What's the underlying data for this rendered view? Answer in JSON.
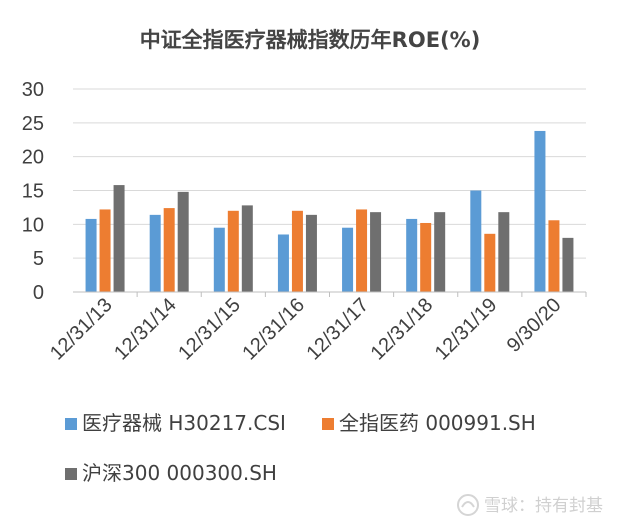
{
  "chart_data": {
    "type": "bar",
    "title": "中证全指医疗器械指数历年ROE(%)",
    "categories": [
      "12/31/13",
      "12/31/14",
      "12/31/15",
      "12/31/16",
      "12/31/17",
      "12/31/18",
      "12/31/19",
      "9/30/20"
    ],
    "series": [
      {
        "name": "医疗器械 H30217.CSI",
        "color": "#5b9bd5",
        "values": [
          10.8,
          11.4,
          9.5,
          8.5,
          9.5,
          10.8,
          15.0,
          23.8
        ]
      },
      {
        "name": "全指医药 000991.SH",
        "color": "#ed7d31",
        "values": [
          12.2,
          12.4,
          12.0,
          12.0,
          12.2,
          10.2,
          8.6,
          10.6
        ]
      },
      {
        "name": "沪深300 000300.SH",
        "color": "#6f6f6f",
        "values": [
          15.8,
          14.8,
          12.8,
          11.4,
          11.8,
          11.8,
          11.8,
          8.0
        ]
      }
    ],
    "ylim": [
      0,
      30
    ],
    "yticks": [
      0,
      5,
      10,
      15,
      20,
      25,
      30
    ],
    "grid": true,
    "legend_position": "bottom",
    "xlabel": "",
    "ylabel": ""
  },
  "watermark": {
    "text": "雪球：持有封基"
  }
}
